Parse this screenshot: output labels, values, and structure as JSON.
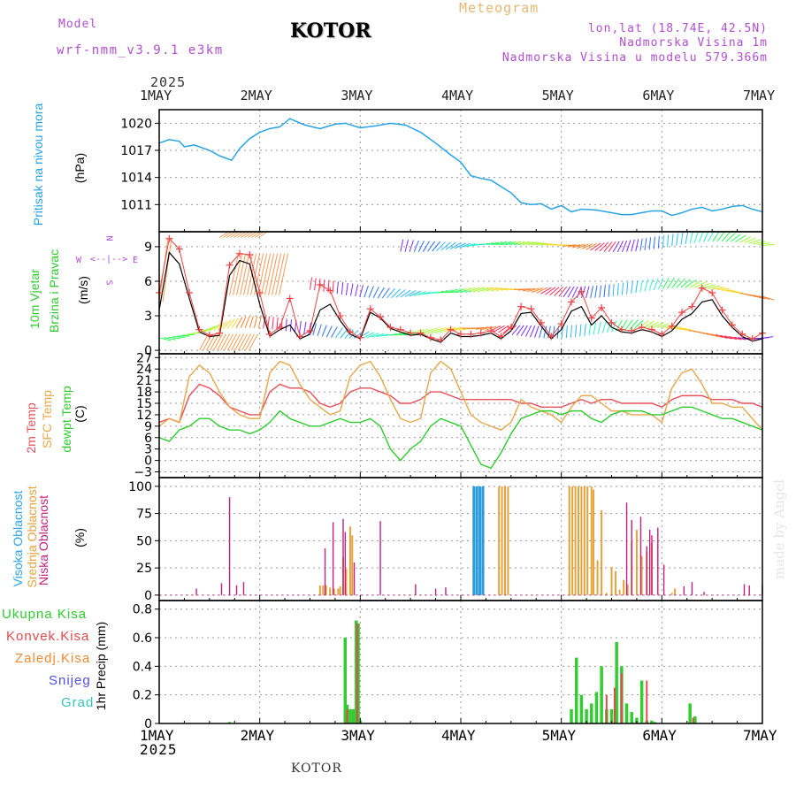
{
  "header": {
    "model_label": "Model",
    "model_name": "wrf-nmm_v3.9.1 e3km",
    "title": "KOTOR",
    "meteogram": "Meteogram",
    "lonlat": "lon,lat (18.74E, 42.5N)",
    "altitude": "Nadmorska Visina 1m",
    "model_altitude": "Nadmorska Visina u modelu 579.366m",
    "footer_station": "KOTOR",
    "watermark": "made by Angel"
  },
  "colors": {
    "pressure": "#29a3e6",
    "wind_speed": "#000000",
    "wind_gust": "#ef4444",
    "temp2m": "#e8505a",
    "sfc_temp": "#e6a84a",
    "dewpt": "#2ecc2e",
    "cloud_high": "#2b9be0",
    "cloud_mid": "#e6a33c",
    "cloud_low": "#c2207e",
    "precip_total": "#33cc33",
    "precip_conv": "#e34a4a",
    "precip_frozen": "#ef8a33",
    "snow": "#5050e0",
    "hail": "#36c2c2",
    "header_purple": "#b04fd0",
    "header_orange": "#e6b870"
  },
  "panel_labels": {
    "pressure": [
      "Pritisak na nivou mora",
      "(hPa)"
    ],
    "wind": [
      "10m Vjetar",
      "Brzina i Pravac",
      "(m/s)"
    ],
    "compass": {
      "n": "N",
      "s": "S",
      "w": "W",
      "e": "E"
    },
    "temp": [
      "2m Temp",
      "SFC Temp",
      "dewpt Temp",
      "(C)"
    ],
    "cloud": [
      "Visoka Oblacnost",
      "Srednja Oblacnost",
      "Niska Oblacnost",
      "(%)"
    ],
    "precip": [
      "Ukupna Kisa",
      "Konvek.Kisa",
      "Zaledj.Kisa",
      "Snijeg",
      "Grad",
      "1hr Precip (mm)"
    ]
  },
  "time_axis": {
    "year": "2025",
    "labels": [
      "1MAY",
      "2MAY",
      "3MAY",
      "4MAY",
      "5MAY",
      "6MAY",
      "7MAY"
    ]
  },
  "chart_data": [
    {
      "type": "line",
      "title": "Pritisak na nivou mora",
      "ylabel": "(hPa)",
      "ylim": [
        1008,
        1021.5
      ],
      "yticks": [
        1011,
        1014,
        1017,
        1020
      ],
      "x": [
        0,
        0.1,
        0.2,
        0.25,
        0.35,
        0.5,
        0.6,
        0.72,
        0.8,
        0.9,
        1.0,
        1.1,
        1.2,
        1.3,
        1.45,
        1.6,
        1.75,
        1.85,
        2.0,
        2.15,
        2.3,
        2.45,
        2.6,
        2.75,
        2.9,
        3.0,
        3.1,
        3.2,
        3.3,
        3.4,
        3.5,
        3.6,
        3.7,
        3.8,
        3.9,
        4.0,
        4.1,
        4.2,
        4.35,
        4.5,
        4.6,
        4.7,
        4.8,
        4.9,
        5.0,
        5.1,
        5.2,
        5.3,
        5.4,
        5.5,
        5.6,
        5.7,
        5.8,
        5.9,
        6.0
      ],
      "values": [
        1017.8,
        1018.2,
        1018.0,
        1017.4,
        1017.6,
        1017.0,
        1016.4,
        1015.9,
        1017.2,
        1018.3,
        1019.0,
        1019.4,
        1019.6,
        1020.5,
        1019.8,
        1019.4,
        1019.9,
        1020.0,
        1019.5,
        1019.7,
        1020.0,
        1019.8,
        1019.0,
        1017.8,
        1016.5,
        1015.7,
        1014.2,
        1013.9,
        1013.7,
        1013.0,
        1012.3,
        1011.2,
        1011.0,
        1011.1,
        1010.5,
        1010.9,
        1010.2,
        1010.5,
        1010.4,
        1010.1,
        1009.9,
        1009.9,
        1010.1,
        1010.3,
        1010.3,
        1009.8,
        1010.1,
        1010.5,
        1010.7,
        1010.3,
        1010.5,
        1010.8,
        1010.9,
        1010.5,
        1010.2
      ]
    },
    {
      "type": "line",
      "title": "10m Vjetar Brzina i Pravac",
      "ylabel": "(m/s)",
      "ylim": [
        -0.3,
        10.3
      ],
      "yticks": [
        0,
        3,
        6,
        9
      ],
      "series": [
        {
          "name": "speed",
          "x": [
            0,
            0.1,
            0.2,
            0.3,
            0.4,
            0.5,
            0.6,
            0.7,
            0.8,
            0.9,
            1.0,
            1.1,
            1.2,
            1.3,
            1.4,
            1.5,
            1.6,
            1.7,
            1.8,
            1.9,
            2.0,
            2.1,
            2.2,
            2.3,
            2.4,
            2.5,
            2.6,
            2.7,
            2.8,
            2.9,
            3.0,
            3.1,
            3.2,
            3.3,
            3.4,
            3.5,
            3.6,
            3.7,
            3.8,
            3.9,
            4.0,
            4.1,
            4.2,
            4.3,
            4.4,
            4.5,
            4.6,
            4.7,
            4.8,
            4.9,
            5.0,
            5.1,
            5.2,
            5.3,
            5.4,
            5.5,
            5.6,
            5.7,
            5.8,
            5.9,
            6.0
          ],
          "values": [
            3.5,
            8.5,
            7.5,
            4.5,
            1.6,
            1.2,
            1.3,
            6.5,
            7.8,
            7.5,
            4.0,
            1.2,
            1.8,
            2.2,
            1.0,
            1.4,
            3.5,
            4.0,
            2.6,
            1.4,
            1.0,
            3.3,
            2.8,
            1.9,
            1.6,
            1.3,
            1.4,
            1.0,
            0.7,
            1.5,
            1.2,
            1.2,
            1.3,
            1.5,
            1.0,
            1.7,
            3.2,
            3.3,
            2.1,
            1.0,
            1.8,
            3.4,
            3.8,
            2.2,
            3.0,
            2.0,
            1.6,
            1.5,
            1.8,
            1.6,
            1.2,
            1.7,
            2.7,
            3.2,
            4.2,
            4.4,
            3.0,
            2.0,
            1.2,
            0.8,
            1.0
          ]
        },
        {
          "name": "gust",
          "x": [
            0,
            0.1,
            0.2,
            0.3,
            0.4,
            0.5,
            0.6,
            0.7,
            0.8,
            0.9,
            1.0,
            1.1,
            1.2,
            1.3,
            1.4,
            1.5,
            1.6,
            1.7,
            1.8,
            1.9,
            2.0,
            2.1,
            2.2,
            2.3,
            2.4,
            2.5,
            2.6,
            2.7,
            2.8,
            2.9,
            3.0,
            3.1,
            3.2,
            3.3,
            3.4,
            3.5,
            3.6,
            3.7,
            3.8,
            3.9,
            4.0,
            4.1,
            4.2,
            4.3,
            4.4,
            4.5,
            4.6,
            4.7,
            4.8,
            4.9,
            5.0,
            5.1,
            5.2,
            5.3,
            5.4,
            5.5,
            5.6,
            5.7,
            5.8,
            5.9,
            6.0
          ],
          "values": [
            5.0,
            9.7,
            8.8,
            5.0,
            1.8,
            1.3,
            1.5,
            7.4,
            8.4,
            8.3,
            5.0,
            1.4,
            2.0,
            4.5,
            1.2,
            1.7,
            5.7,
            5.2,
            3.0,
            1.6,
            1.1,
            3.6,
            2.9,
            2.0,
            1.8,
            1.5,
            1.5,
            1.1,
            0.9,
            1.8,
            1.4,
            1.4,
            1.5,
            1.7,
            1.2,
            2.0,
            3.8,
            3.6,
            2.4,
            1.2,
            2.3,
            4.2,
            5.1,
            2.8,
            3.7,
            2.4,
            1.8,
            1.7,
            2.0,
            1.8,
            1.4,
            2.1,
            3.3,
            3.8,
            5.4,
            5.0,
            3.5,
            2.2,
            1.4,
            1.0,
            1.5
          ]
        }
      ],
      "barb_rows": [
        {
          "level": 9.0,
          "x0": 2.4,
          "x1": 6.0,
          "color": "mixed"
        },
        {
          "level": 5.0,
          "x0": 1.5,
          "x1": 6.0,
          "color": "mixed"
        },
        {
          "level": 1.5,
          "x0": 0.0,
          "x1": 6.0,
          "color": "mixed"
        }
      ]
    },
    {
      "type": "line",
      "title": "2m Temp / SFC Temp / dewpt Temp",
      "ylabel": "(C)",
      "ylim": [
        -4.5,
        28
      ],
      "yticks": [
        -3,
        0,
        3,
        6,
        9,
        12,
        15,
        18,
        21,
        24,
        27
      ],
      "x": [
        0,
        0.1,
        0.2,
        0.3,
        0.4,
        0.5,
        0.6,
        0.7,
        0.8,
        0.9,
        1.0,
        1.1,
        1.2,
        1.3,
        1.4,
        1.5,
        1.6,
        1.7,
        1.8,
        1.9,
        2.0,
        2.1,
        2.2,
        2.3,
        2.4,
        2.5,
        2.6,
        2.7,
        2.8,
        2.9,
        3.0,
        3.1,
        3.2,
        3.3,
        3.4,
        3.5,
        3.6,
        3.7,
        3.8,
        3.9,
        4.0,
        4.1,
        4.2,
        4.3,
        4.4,
        4.5,
        4.6,
        4.7,
        4.8,
        4.9,
        5.0,
        5.1,
        5.2,
        5.3,
        5.4,
        5.5,
        5.6,
        5.7,
        5.8,
        5.9,
        6.0
      ],
      "series": [
        {
          "name": "2m Temp",
          "values": [
            10,
            11,
            10,
            17,
            20,
            19,
            17,
            14,
            13,
            12,
            12,
            18,
            20,
            19,
            19,
            18,
            15,
            14,
            15,
            18,
            19,
            19,
            18,
            17,
            15,
            15,
            16,
            18,
            18,
            17,
            16,
            16,
            16,
            16,
            16,
            16,
            15,
            15,
            14,
            14,
            14,
            15,
            16,
            15,
            16,
            16,
            15,
            15,
            15,
            15,
            14,
            16,
            17,
            17,
            17,
            16,
            16,
            16,
            15,
            15,
            14
          ]
        },
        {
          "name": "SFC Temp",
          "values": [
            9,
            11,
            10,
            22,
            25,
            23,
            18,
            14,
            12,
            11,
            11,
            23,
            26,
            25,
            20,
            16,
            14,
            12,
            13,
            22,
            25,
            26,
            22,
            16,
            11,
            10,
            11,
            23,
            26,
            24,
            18,
            12,
            10,
            9,
            8,
            10,
            16,
            14,
            13,
            12,
            10,
            14,
            17,
            17,
            15,
            13,
            13,
            12,
            12,
            12,
            10,
            19,
            23,
            24,
            20,
            15,
            15,
            14,
            14,
            11,
            8
          ]
        },
        {
          "name": "dewpt Temp",
          "values": [
            6,
            5,
            8,
            9,
            11,
            11,
            9,
            8,
            8,
            7,
            8,
            10,
            13,
            11,
            10,
            9,
            9,
            10,
            11,
            10,
            10,
            11,
            9,
            3,
            0,
            3,
            5,
            9,
            11,
            10,
            9,
            4,
            -1,
            -2,
            2,
            7,
            11,
            12,
            13,
            13,
            12,
            13,
            13,
            11,
            10,
            12,
            13,
            13,
            13,
            12,
            12,
            13,
            14,
            14,
            13,
            12,
            11,
            11,
            10,
            9,
            8
          ]
        }
      ]
    },
    {
      "type": "bar",
      "title": "Oblacnost",
      "ylabel": "(%)",
      "ylim": [
        -5,
        108
      ],
      "yticks": [
        0,
        25,
        50,
        75,
        100
      ],
      "series": [
        {
          "name": "Visoka Oblacnost",
          "x": [
            3.13,
            3.16,
            3.19,
            3.22
          ],
          "values": [
            100,
            100,
            100,
            100
          ]
        },
        {
          "name": "Srednja Oblacnost",
          "x": [
            1.6,
            1.63,
            1.66,
            1.7,
            1.74,
            1.78,
            1.8,
            1.83,
            1.86,
            1.9,
            1.92,
            3.38,
            3.41,
            3.44,
            3.47,
            4.08,
            4.11,
            4.14,
            4.17,
            4.2,
            4.23,
            4.26,
            4.3,
            4.32,
            4.36,
            4.4,
            4.45,
            4.5,
            4.54,
            4.58,
            4.62,
            4.66,
            4.7,
            4.75,
            4.8,
            4.85,
            4.9,
            5.1,
            5.13
          ],
          "values": [
            9,
            9,
            9,
            7,
            6,
            6,
            8,
            35,
            24,
            63,
            55,
            100,
            100,
            100,
            100,
            100,
            100,
            100,
            100,
            100,
            100,
            100,
            100,
            97,
            32,
            78,
            2,
            26,
            22,
            5,
            14,
            10,
            50,
            60,
            36,
            40,
            48,
            2,
            6
          ]
        },
        {
          "name": "Niska Oblacnost",
          "x": [
            0.37,
            0.62,
            0.7,
            0.77,
            0.84,
            1.65,
            1.73,
            1.83,
            1.85,
            1.94,
            2.2,
            2.55,
            2.75,
            2.85,
            4.65,
            4.7,
            4.79,
            4.85,
            4.88,
            4.9,
            4.96,
            5.02,
            5.22,
            5.3,
            5.42,
            5.82,
            5.87,
            6.0
          ],
          "values": [
            6,
            11,
            90,
            9,
            12,
            43,
            67,
            70,
            58,
            30,
            68,
            10,
            6,
            7,
            85,
            69,
            72,
            45,
            60,
            55,
            62,
            28,
            8,
            12,
            3,
            10,
            9,
            9
          ]
        }
      ]
    },
    {
      "type": "bar",
      "title": "1hr Precip",
      "ylabel": "1hr Precip (mm)",
      "ylim": [
        0,
        0.86
      ],
      "yticks": [
        0,
        0.2,
        0.4,
        0.6,
        0.8
      ],
      "series": [
        {
          "name": "Ukupna Kisa",
          "x": [
            0.7,
            1.85,
            1.87,
            1.9,
            1.93,
            1.96,
            1.98,
            2.0,
            4.1,
            4.15,
            4.2,
            4.25,
            4.3,
            4.35,
            4.4,
            4.45,
            4.5,
            4.55,
            4.6,
            4.65,
            4.7,
            4.75,
            4.8,
            4.85,
            4.9,
            4.93,
            5.28,
            5.33
          ],
          "values": [
            0.01,
            0.6,
            0.13,
            0.1,
            0.1,
            0.72,
            0.7,
            0.02,
            0.1,
            0.46,
            0.2,
            0.1,
            0.14,
            0.22,
            0.4,
            0.1,
            0.1,
            0.57,
            0.4,
            0.14,
            0.08,
            0.04,
            0.3,
            0.02,
            0.02,
            0.01,
            0.14,
            0.05
          ]
        },
        {
          "name": "Konvek.Kisa",
          "x": [
            1.87,
            1.97,
            4.45,
            4.53,
            4.6,
            4.85,
            5.31
          ],
          "values": [
            0.1,
            0.7,
            0.2,
            0.25,
            0.35,
            0.3,
            0.04
          ]
        }
      ]
    }
  ]
}
